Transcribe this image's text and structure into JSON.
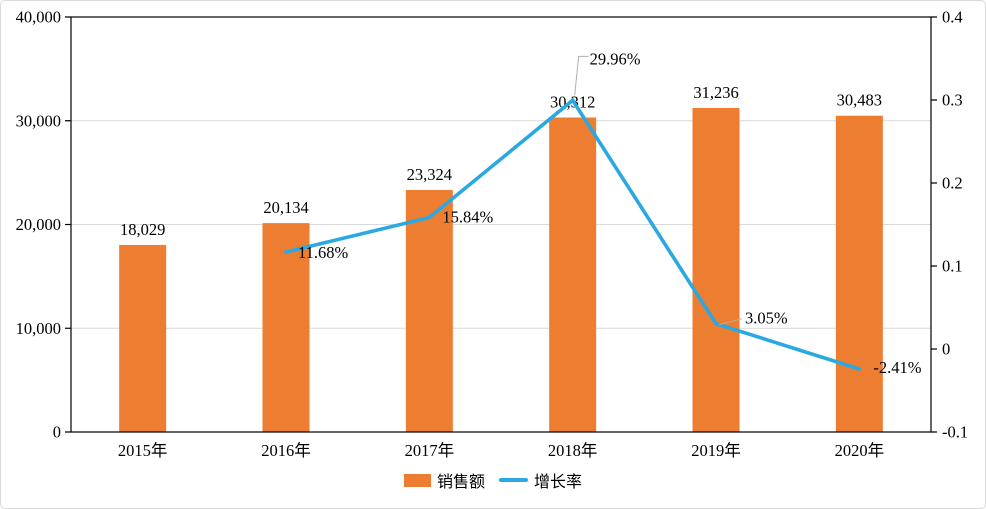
{
  "chart_data": {
    "type": "combo",
    "title": "",
    "categories": [
      "2015年",
      "2016年",
      "2017年",
      "2018年",
      "2019年",
      "2020年"
    ],
    "series": [
      {
        "name": "销售额",
        "chart_type": "bar",
        "axis": "left",
        "color": "#ED7D31",
        "values": [
          18029,
          20134,
          23324,
          30312,
          31236,
          30483
        ],
        "labels": [
          "18,029",
          "20,134",
          "23,324",
          "30,312",
          "31,236",
          "30,483"
        ]
      },
      {
        "name": "增长率",
        "chart_type": "line",
        "axis": "right",
        "color": "#29A9E0",
        "values": [
          null,
          0.1168,
          0.1584,
          0.2996,
          0.0305,
          -0.0241
        ],
        "labels": [
          null,
          "11.68%",
          "15.84%",
          "29.96%",
          "3.05%",
          "-2.41%"
        ]
      }
    ],
    "left_axis": {
      "min": 0,
      "max": 40000,
      "tick_values": [
        0,
        10000,
        20000,
        30000,
        40000
      ],
      "tick_labels": [
        "0",
        "10,000",
        "20,000",
        "30,000",
        "40,000"
      ]
    },
    "right_axis": {
      "min": -0.1,
      "max": 0.4,
      "tick_values": [
        -0.1,
        0,
        0.1,
        0.2,
        0.3,
        0.4
      ],
      "tick_labels": [
        "-0.1",
        "0",
        "0.1",
        "0.2",
        "0.3",
        "0.4"
      ]
    },
    "grid": "horizontal",
    "gridline_color": "#D9D9D9",
    "axis_color": "#000000",
    "leader_line_color": "#AFAFAF",
    "legend_position": "bottom-center"
  }
}
